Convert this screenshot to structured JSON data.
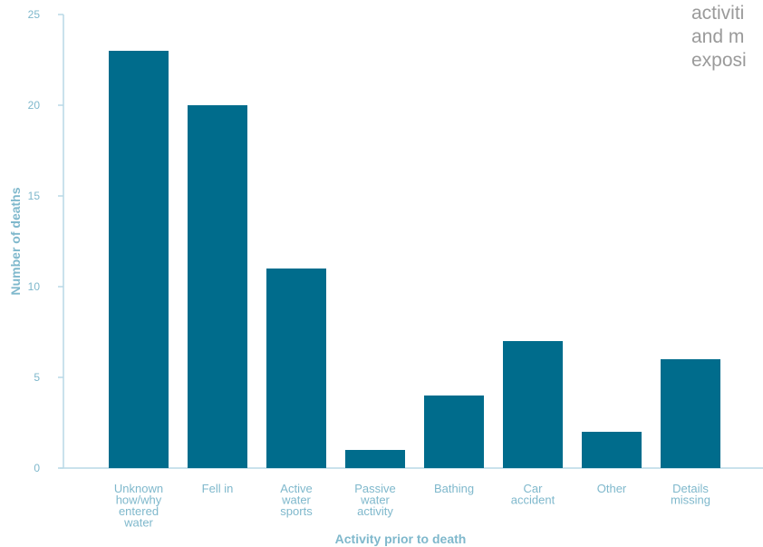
{
  "side_text": [
    "activiti",
    "and m",
    "exposi"
  ],
  "colors": {
    "bar": "#006c8c",
    "axis": "#b9d9e6",
    "label": "#7fb8cc"
  },
  "chart_data": {
    "type": "bar",
    "title": "",
    "xlabel": "Activity prior to death",
    "ylabel": "Number of deaths",
    "ylim": [
      0,
      25
    ],
    "yticks": [
      0,
      5,
      10,
      15,
      20,
      25
    ],
    "grid": false,
    "categories": [
      [
        "Unknown",
        "how/why",
        "entered",
        "water"
      ],
      [
        "Fell in"
      ],
      [
        "Active",
        "water",
        "sports"
      ],
      [
        "Passive",
        "water",
        "activity"
      ],
      [
        "Bathing"
      ],
      [
        "Car",
        "accident"
      ],
      [
        "Other"
      ],
      [
        "Details",
        "missing"
      ]
    ],
    "values": [
      23,
      20,
      11,
      1,
      4,
      7,
      2,
      6
    ]
  }
}
